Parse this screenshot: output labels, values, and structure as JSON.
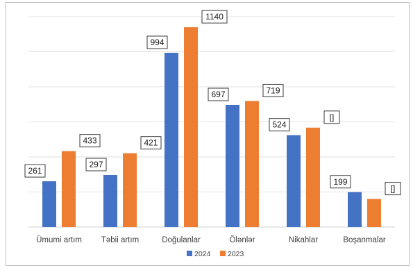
{
  "chart_data": {
    "type": "bar",
    "categories": [
      "Ümumi artım",
      "Təbii artım",
      "Doğulanlar",
      "Ölənlər",
      "Nikahlar",
      "Boşanmalar"
    ],
    "series": [
      {
        "name": "2024",
        "color": "#4472C4",
        "values": [
          261,
          297,
          994,
          697,
          524,
          199
        ],
        "labels": [
          "261",
          "297",
          "994",
          "697",
          "524",
          "199"
        ]
      },
      {
        "name": "2023",
        "color": "#ED7D31",
        "values": [
          433,
          421,
          1140,
          719,
          567,
          160
        ],
        "labels": [
          "433",
          "421",
          "1140",
          "719",
          "[]",
          "[]"
        ]
      }
    ],
    "ylim": [
      0,
      1200
    ],
    "grid": true,
    "legend": "bottom-center",
    "title": "",
    "xlabel": "",
    "ylabel": ""
  }
}
